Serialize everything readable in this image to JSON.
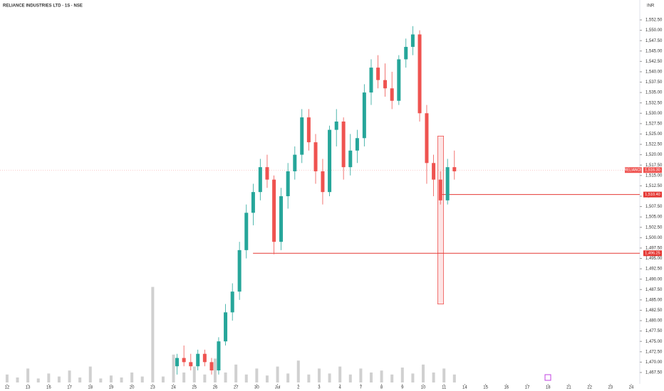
{
  "chart_data": {
    "type": "candlestick",
    "title": "RELIANCE INDUSTRIES LTD · 1S · NSE",
    "currency": "INR",
    "symbol": "RELIANCE",
    "xlim": [
      -0.34,
      30.41
    ],
    "ylim": [
      1464.75,
      1557.3
    ],
    "xticks": [
      {
        "value": 0,
        "label": "12"
      },
      {
        "value": 1,
        "label": "13"
      },
      {
        "value": 2,
        "label": "16"
      },
      {
        "value": 3,
        "label": "17"
      },
      {
        "value": 4,
        "label": "18"
      },
      {
        "value": 5,
        "label": "19"
      },
      {
        "value": 6,
        "label": "20"
      },
      {
        "value": 7,
        "label": "23"
      },
      {
        "value": 8,
        "label": "24"
      },
      {
        "value": 9,
        "label": "25"
      },
      {
        "value": 10,
        "label": "26"
      },
      {
        "value": 11,
        "label": "27"
      },
      {
        "value": 12,
        "label": "30"
      },
      {
        "value": 13,
        "label": "Jul"
      },
      {
        "value": 14,
        "label": "2"
      },
      {
        "value": 15,
        "label": "3"
      },
      {
        "value": 16,
        "label": "4"
      },
      {
        "value": 17,
        "label": "7"
      },
      {
        "value": 18,
        "label": "8"
      },
      {
        "value": 19,
        "label": "9"
      },
      {
        "value": 20,
        "label": "10"
      },
      {
        "value": 21,
        "label": "11"
      },
      {
        "value": 22,
        "label": "14"
      },
      {
        "value": 23,
        "label": "15"
      },
      {
        "value": 24,
        "label": "16"
      },
      {
        "value": 25,
        "label": "17"
      },
      {
        "value": 26,
        "label": "18"
      },
      {
        "value": 27,
        "label": "21"
      },
      {
        "value": 28,
        "label": "22"
      },
      {
        "value": 29,
        "label": "23"
      },
      {
        "value": 30,
        "label": "24"
      }
    ],
    "yticks": [
      {
        "value": 1467.5,
        "label": "1,467.50"
      },
      {
        "value": 1470,
        "label": "1,470.00"
      },
      {
        "value": 1472.5,
        "label": "1,472.50"
      },
      {
        "value": 1475,
        "label": "1,475.00"
      },
      {
        "value": 1477.5,
        "label": "1,477.50"
      },
      {
        "value": 1480,
        "label": "1,480.00"
      },
      {
        "value": 1482.5,
        "label": "1,482.50"
      },
      {
        "value": 1485,
        "label": "1,485.00"
      },
      {
        "value": 1487.5,
        "label": "1,487.50"
      },
      {
        "value": 1490,
        "label": "1,490.00"
      },
      {
        "value": 1492.5,
        "label": "1,492.50"
      },
      {
        "value": 1495,
        "label": "1,495.00"
      },
      {
        "value": 1497.5,
        "label": "1,497.50"
      },
      {
        "value": 1500,
        "label": "1,500.00"
      },
      {
        "value": 1502.5,
        "label": "1,502.50"
      },
      {
        "value": 1505,
        "label": "1,505.00"
      },
      {
        "value": 1507.5,
        "label": "1,507.50"
      },
      {
        "value": 1510,
        "label": "1,510.00"
      },
      {
        "value": 1512.5,
        "label": "1,512.50"
      },
      {
        "value": 1515,
        "label": "1,515.00"
      },
      {
        "value": 1517.5,
        "label": "1,517.50"
      },
      {
        "value": 1520,
        "label": "1,520.00"
      },
      {
        "value": 1522.5,
        "label": "1,522.50"
      },
      {
        "value": 1525,
        "label": "1,525.00"
      },
      {
        "value": 1527.5,
        "label": "1,527.50"
      },
      {
        "value": 1530,
        "label": "1,530.00"
      },
      {
        "value": 1532.5,
        "label": "1,532.50"
      },
      {
        "value": 1535,
        "label": "1,535.00"
      },
      {
        "value": 1537.5,
        "label": "1,537.50"
      },
      {
        "value": 1540,
        "label": "1,540.00"
      },
      {
        "value": 1542.5,
        "label": "1,542.50"
      },
      {
        "value": 1545,
        "label": "1,545.00"
      },
      {
        "value": 1547.5,
        "label": "1,547.50"
      },
      {
        "value": 1550,
        "label": "1,550.00"
      },
      {
        "value": 1552.5,
        "label": "1,552.50"
      }
    ],
    "up_color": "#26a69a",
    "down_color": "#ef5350",
    "x": [
      8.17,
      8.5,
      8.83,
      9.17,
      9.5,
      9.83,
      10.17,
      10.5,
      10.83,
      11.17,
      11.5,
      11.83,
      12.17,
      12.5,
      12.83,
      13.17,
      13.5,
      13.83,
      14.17,
      14.5,
      14.83,
      15.17,
      15.5,
      15.83,
      16.17,
      16.5,
      16.83,
      17.17,
      17.5,
      17.83,
      18.17,
      18.5,
      18.83,
      19.17,
      19.5,
      19.83,
      20.17,
      20.5,
      20.83,
      21.17,
      21.5
    ],
    "open": [
      1469,
      1471,
      1470,
      1469,
      1472,
      1470,
      1468,
      1475,
      1482,
      1487,
      1497,
      1506,
      1511,
      1517,
      1514,
      1499,
      1510,
      1516,
      1520,
      1529,
      1523,
      1516,
      1511,
      1526,
      1528,
      1517,
      1521,
      1524,
      1535,
      1541,
      1538,
      1536,
      1533,
      1543,
      1546,
      1549,
      1530,
      1518,
      1514,
      1509,
      1517
    ],
    "high": [
      1472,
      1474,
      1472,
      1473,
      1473,
      1471,
      1476,
      1484,
      1489,
      1499,
      1508,
      1513,
      1519,
      1520,
      1515,
      1512,
      1518,
      1522,
      1531,
      1531,
      1525,
      1519,
      1527,
      1531,
      1529,
      1525,
      1526,
      1537,
      1543,
      1544,
      1542,
      1540,
      1544,
      1548,
      1551,
      1550,
      1532,
      1520,
      1516,
      1519,
      1521
    ],
    "low": [
      1467,
      1469,
      1468,
      1468,
      1469,
      1467,
      1467,
      1474,
      1480,
      1485,
      1495,
      1503,
      1509,
      1512,
      1496,
      1497,
      1507,
      1514,
      1518,
      1521,
      1513,
      1508,
      1510,
      1522,
      1514,
      1515,
      1518,
      1522,
      1532,
      1536,
      1534,
      1531,
      1532,
      1541,
      1544,
      1528,
      1513,
      1510,
      1508,
      1508,
      1514
    ],
    "close": [
      1471,
      1470,
      1469,
      1472,
      1470,
      1468,
      1475,
      1482,
      1487,
      1497,
      1506,
      1511,
      1517,
      1514,
      1499,
      1510,
      1516,
      1520,
      1529,
      1523,
      1516,
      1511,
      1526,
      1528,
      1517,
      1521,
      1524,
      1535,
      1541,
      1538,
      1536,
      1533,
      1543,
      1546,
      1549,
      1530,
      1518,
      1514,
      1509,
      1517,
      1516
    ],
    "volume": {
      "color": "#b0b0b0",
      "vlim": [
        0,
        100
      ],
      "x": [
        0,
        0.5,
        1,
        1.5,
        2,
        2.5,
        3,
        3.5,
        4,
        4.5,
        5,
        5.5,
        6,
        6.5,
        7,
        7.5,
        8,
        8.5,
        9,
        9.5,
        10,
        10.5,
        11,
        11.5,
        12,
        12.5,
        13,
        13.5,
        14,
        14.5,
        15,
        15.5,
        16,
        16.5,
        17,
        17.5,
        18,
        18.5,
        19,
        19.5,
        20,
        20.5,
        21,
        21.5
      ],
      "values": [
        8,
        5,
        14,
        4,
        9,
        6,
        12,
        5,
        16,
        4,
        7,
        5,
        10,
        6,
        96,
        6,
        28,
        10,
        16,
        8,
        24,
        10,
        18,
        8,
        14,
        7,
        16,
        9,
        22,
        8,
        14,
        9,
        16,
        8,
        14,
        10,
        12,
        8,
        15,
        9,
        18,
        10,
        14,
        8
      ]
    },
    "levels": [
      {
        "value": 1510.4,
        "label": "1,510.40",
        "from": 20.82
      },
      {
        "value": 1496.25,
        "label": "1,496.25",
        "from": 11.82
      }
    ],
    "last": {
      "value": 1516.3,
      "label": "1,516.30"
    },
    "zone": {
      "x": [
        20.7,
        20.98
      ],
      "y": [
        1484,
        1524.5
      ]
    }
  }
}
